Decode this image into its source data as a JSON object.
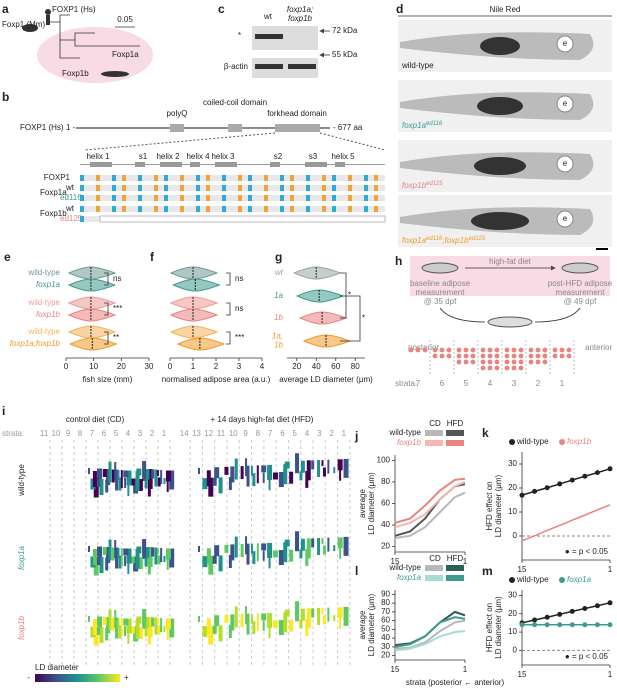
{
  "a": {
    "label": "a",
    "human": "FOXP1 (Hs)",
    "mouse": "Foxp1 (Mm)",
    "scale": "0.05",
    "foxp1a": "Foxp1a",
    "foxp1b": "Foxp1b"
  },
  "b": {
    "label": "b",
    "protein": "FOXP1 (Hs)",
    "start": "1 -",
    "end": "- 677 aa",
    "domains": [
      "polyQ",
      "coiled-coil domain",
      "forkhead domain"
    ],
    "structure": [
      "helix 1",
      "s1",
      "helix 2",
      "helix 4",
      "helix 3",
      "s2",
      "s3",
      "helix 5"
    ],
    "rows": [
      "FOXP1",
      "Foxp1a",
      "wt",
      "ed116",
      "Foxp1b",
      "wt",
      "ed125"
    ]
  },
  "c": {
    "label": "c",
    "lanes": [
      "wt",
      "foxp1a;",
      "foxp1b"
    ],
    "asterisk": "*",
    "markers": [
      "72 kDa",
      "55 kDa"
    ],
    "loading": "β-actin"
  },
  "d": {
    "label": "d",
    "title": "Nile Red",
    "eye": "e",
    "asterisk": "*",
    "genotypes": [
      {
        "gene": "wild-type"
      },
      {
        "gene": "foxp1a",
        "allele": "ed116"
      },
      {
        "gene": "foxp1b",
        "allele": "ed125"
      },
      {
        "gene": "foxp1a",
        "allele": "ed116",
        "gene2": ";foxp1b",
        "allele2": "ed125"
      }
    ]
  },
  "e": {
    "label": "e",
    "xlabel": "fish size (mm)",
    "xlim": [
      0,
      30
    ],
    "xticks": [
      0,
      10,
      20,
      30
    ],
    "groups": [
      {
        "names": [
          "wild-type",
          "foxp1a"
        ],
        "colors": [
          "#6f9a95",
          "#3f9b90"
        ],
        "medians": [
          9,
          9
        ],
        "stat": "ns"
      },
      {
        "names": [
          "wild-type",
          "foxp1b"
        ],
        "colors": [
          "#ee9a96",
          "#e8837f"
        ],
        "medians": [
          9,
          9
        ],
        "stat": "***"
      },
      {
        "names": [
          "wild-type",
          "foxp1a;foxp1b"
        ],
        "colors": [
          "#f3b35a",
          "#f09a2a"
        ],
        "medians": [
          9,
          9.5
        ],
        "stat": "**"
      }
    ]
  },
  "f": {
    "label": "f",
    "xlabel": "normalised adipose area (a.u.)",
    "xlim": [
      0,
      4
    ],
    "xticks": [
      0,
      1,
      2,
      3,
      4
    ],
    "groups": [
      {
        "medians": [
          1,
          1.1
        ],
        "stat": "ns"
      },
      {
        "medians": [
          1,
          1
        ],
        "stat": "ns"
      },
      {
        "medians": [
          1,
          1.3
        ],
        "stat": "***"
      }
    ]
  },
  "g": {
    "label": "g",
    "xlabel": "average LD diameter (μm)",
    "xlim": [
      10,
      90
    ],
    "xticks": [
      20,
      40,
      60,
      80
    ],
    "violins": [
      {
        "labels": [
          "wt"
        ],
        "color": "#9aa5a4",
        "median": 40
      },
      {
        "labels": [
          "1a"
        ],
        "color": "#3f9b90",
        "median": 43
      },
      {
        "labels": [
          "1b"
        ],
        "color": "#e8837f",
        "median": 46
      },
      {
        "labels": [
          "1a,",
          "1b"
        ],
        "color": "#f09a2a",
        "median": 50
      }
    ],
    "stats": [
      "*",
      "*"
    ]
  },
  "h": {
    "label": "h",
    "diet": "high-fat diet",
    "baseline": [
      "baseline adipose",
      "measurement",
      "@ 35 dpf"
    ],
    "post": [
      "post-HFD adipose",
      "measurement",
      "@ 49 dpf"
    ],
    "posterior": "posterior",
    "anterior": "anterior",
    "strata_label": "strata:",
    "strata": [
      7,
      6,
      5,
      4,
      3,
      2,
      1
    ]
  },
  "i": {
    "label": "i",
    "cd": "control diet (CD)",
    "hfd": "+  14 days high-fat diet (HFD)",
    "strata_label": "strata:",
    "cd_strata": [
      11,
      10,
      9,
      8,
      7,
      6,
      5,
      4,
      3,
      2,
      1
    ],
    "hfd_strata": [
      14,
      13,
      12,
      11,
      10,
      9,
      8,
      7,
      6,
      5,
      4,
      3,
      2,
      1
    ],
    "rows": [
      "wild-type",
      "foxp1a",
      "foxp1b"
    ],
    "colorbar": "LD diameter",
    "low": "-",
    "high": "+"
  },
  "j": {
    "label": "j",
    "ylabel": [
      "average",
      "LD diameter (μm)"
    ],
    "xlim": [
      15,
      1
    ],
    "xticks": [
      15,
      1
    ],
    "ylim": [
      15,
      105
    ],
    "yticks": [
      20,
      40,
      60,
      80,
      100
    ],
    "x": [
      15,
      12,
      9,
      6,
      3,
      1
    ],
    "series": [
      {
        "genotype": "wild-type",
        "diet": "CD",
        "color": "#b8b8b8",
        "values": [
          28,
          30,
          38,
          52,
          66,
          70
        ]
      },
      {
        "genotype": "wild-type",
        "diet": "HFD",
        "color": "#555555",
        "values": [
          30,
          34,
          46,
          64,
          76,
          78
        ]
      },
      {
        "genotype": "foxp1b",
        "diet": "CD",
        "color": "#f4b6b3",
        "values": [
          38,
          42,
          50,
          64,
          76,
          80
        ]
      },
      {
        "genotype": "foxp1b",
        "diet": "HFD",
        "color": "#e8837f",
        "values": [
          42,
          46,
          58,
          72,
          82,
          83
        ]
      }
    ]
  },
  "k": {
    "label": "k",
    "ylabel": [
      "HFD effect on",
      "LD diameter (μm)"
    ],
    "xlim": [
      15,
      1
    ],
    "xticks": [
      15,
      1
    ],
    "ylim": [
      -10,
      35
    ],
    "yticks": [
      0,
      10,
      20,
      30
    ],
    "x": [
      15,
      13,
      11,
      9,
      7,
      5,
      3,
      1
    ],
    "series": [
      {
        "name": "wild-type",
        "color": "#222222",
        "markers": true,
        "values": [
          17,
          18.6,
          20.1,
          21.7,
          23.3,
          24.9,
          26.4,
          28
        ]
      },
      {
        "name": "foxp1b",
        "color": "#e8837f",
        "markers": false,
        "values": [
          -2,
          0.1,
          2.3,
          4.4,
          6.6,
          8.7,
          10.9,
          13
        ]
      }
    ],
    "note": "● = p < 0.05"
  },
  "l": {
    "label": "l",
    "ylabel": [
      "average",
      "LD diameter (μm)"
    ],
    "xlim": [
      15,
      1
    ],
    "xticks": [
      15,
      1
    ],
    "ylim": [
      15,
      95
    ],
    "yticks": [
      20,
      30,
      40,
      50,
      60,
      70,
      80,
      90
    ],
    "x": [
      15,
      12,
      9,
      6,
      3,
      1
    ],
    "series": [
      {
        "genotype": "wild-type",
        "diet": "CD",
        "color": "#b8b8b8",
        "values": [
          28,
          29,
          35,
          48,
          58,
          60
        ]
      },
      {
        "genotype": "wild-type",
        "diet": "HFD",
        "color": "#2e5e58",
        "values": [
          32,
          34,
          42,
          58,
          70,
          66
        ]
      },
      {
        "genotype": "foxp1a",
        "diet": "CD",
        "color": "#a6dcd6",
        "values": [
          26,
          28,
          33,
          42,
          47,
          48
        ]
      },
      {
        "genotype": "foxp1a",
        "diet": "HFD",
        "color": "#3f9b90",
        "values": [
          30,
          33,
          42,
          58,
          64,
          62
        ]
      }
    ]
  },
  "m": {
    "label": "m",
    "ylabel": [
      "HFD effect on",
      "LD diameter (μm)"
    ],
    "xlim": [
      15,
      1
    ],
    "xticks": [
      15,
      1
    ],
    "ylim": [
      -8,
      33
    ],
    "yticks": [
      0,
      10,
      20,
      30
    ],
    "x": [
      15,
      13,
      11,
      9,
      7,
      5,
      3,
      1
    ],
    "series": [
      {
        "name": "wild-type",
        "color": "#222222",
        "markers": true,
        "values": [
          15,
          16.6,
          18.1,
          19.7,
          21.3,
          22.9,
          24.4,
          26
        ]
      },
      {
        "name": "foxp1a",
        "color": "#3f9b90",
        "markers": true,
        "values": [
          14,
          14,
          14,
          14,
          14,
          14,
          14,
          14
        ]
      }
    ],
    "note": "● = p < 0.05"
  },
  "xlabel": "strata (posterior ← anterior)"
}
